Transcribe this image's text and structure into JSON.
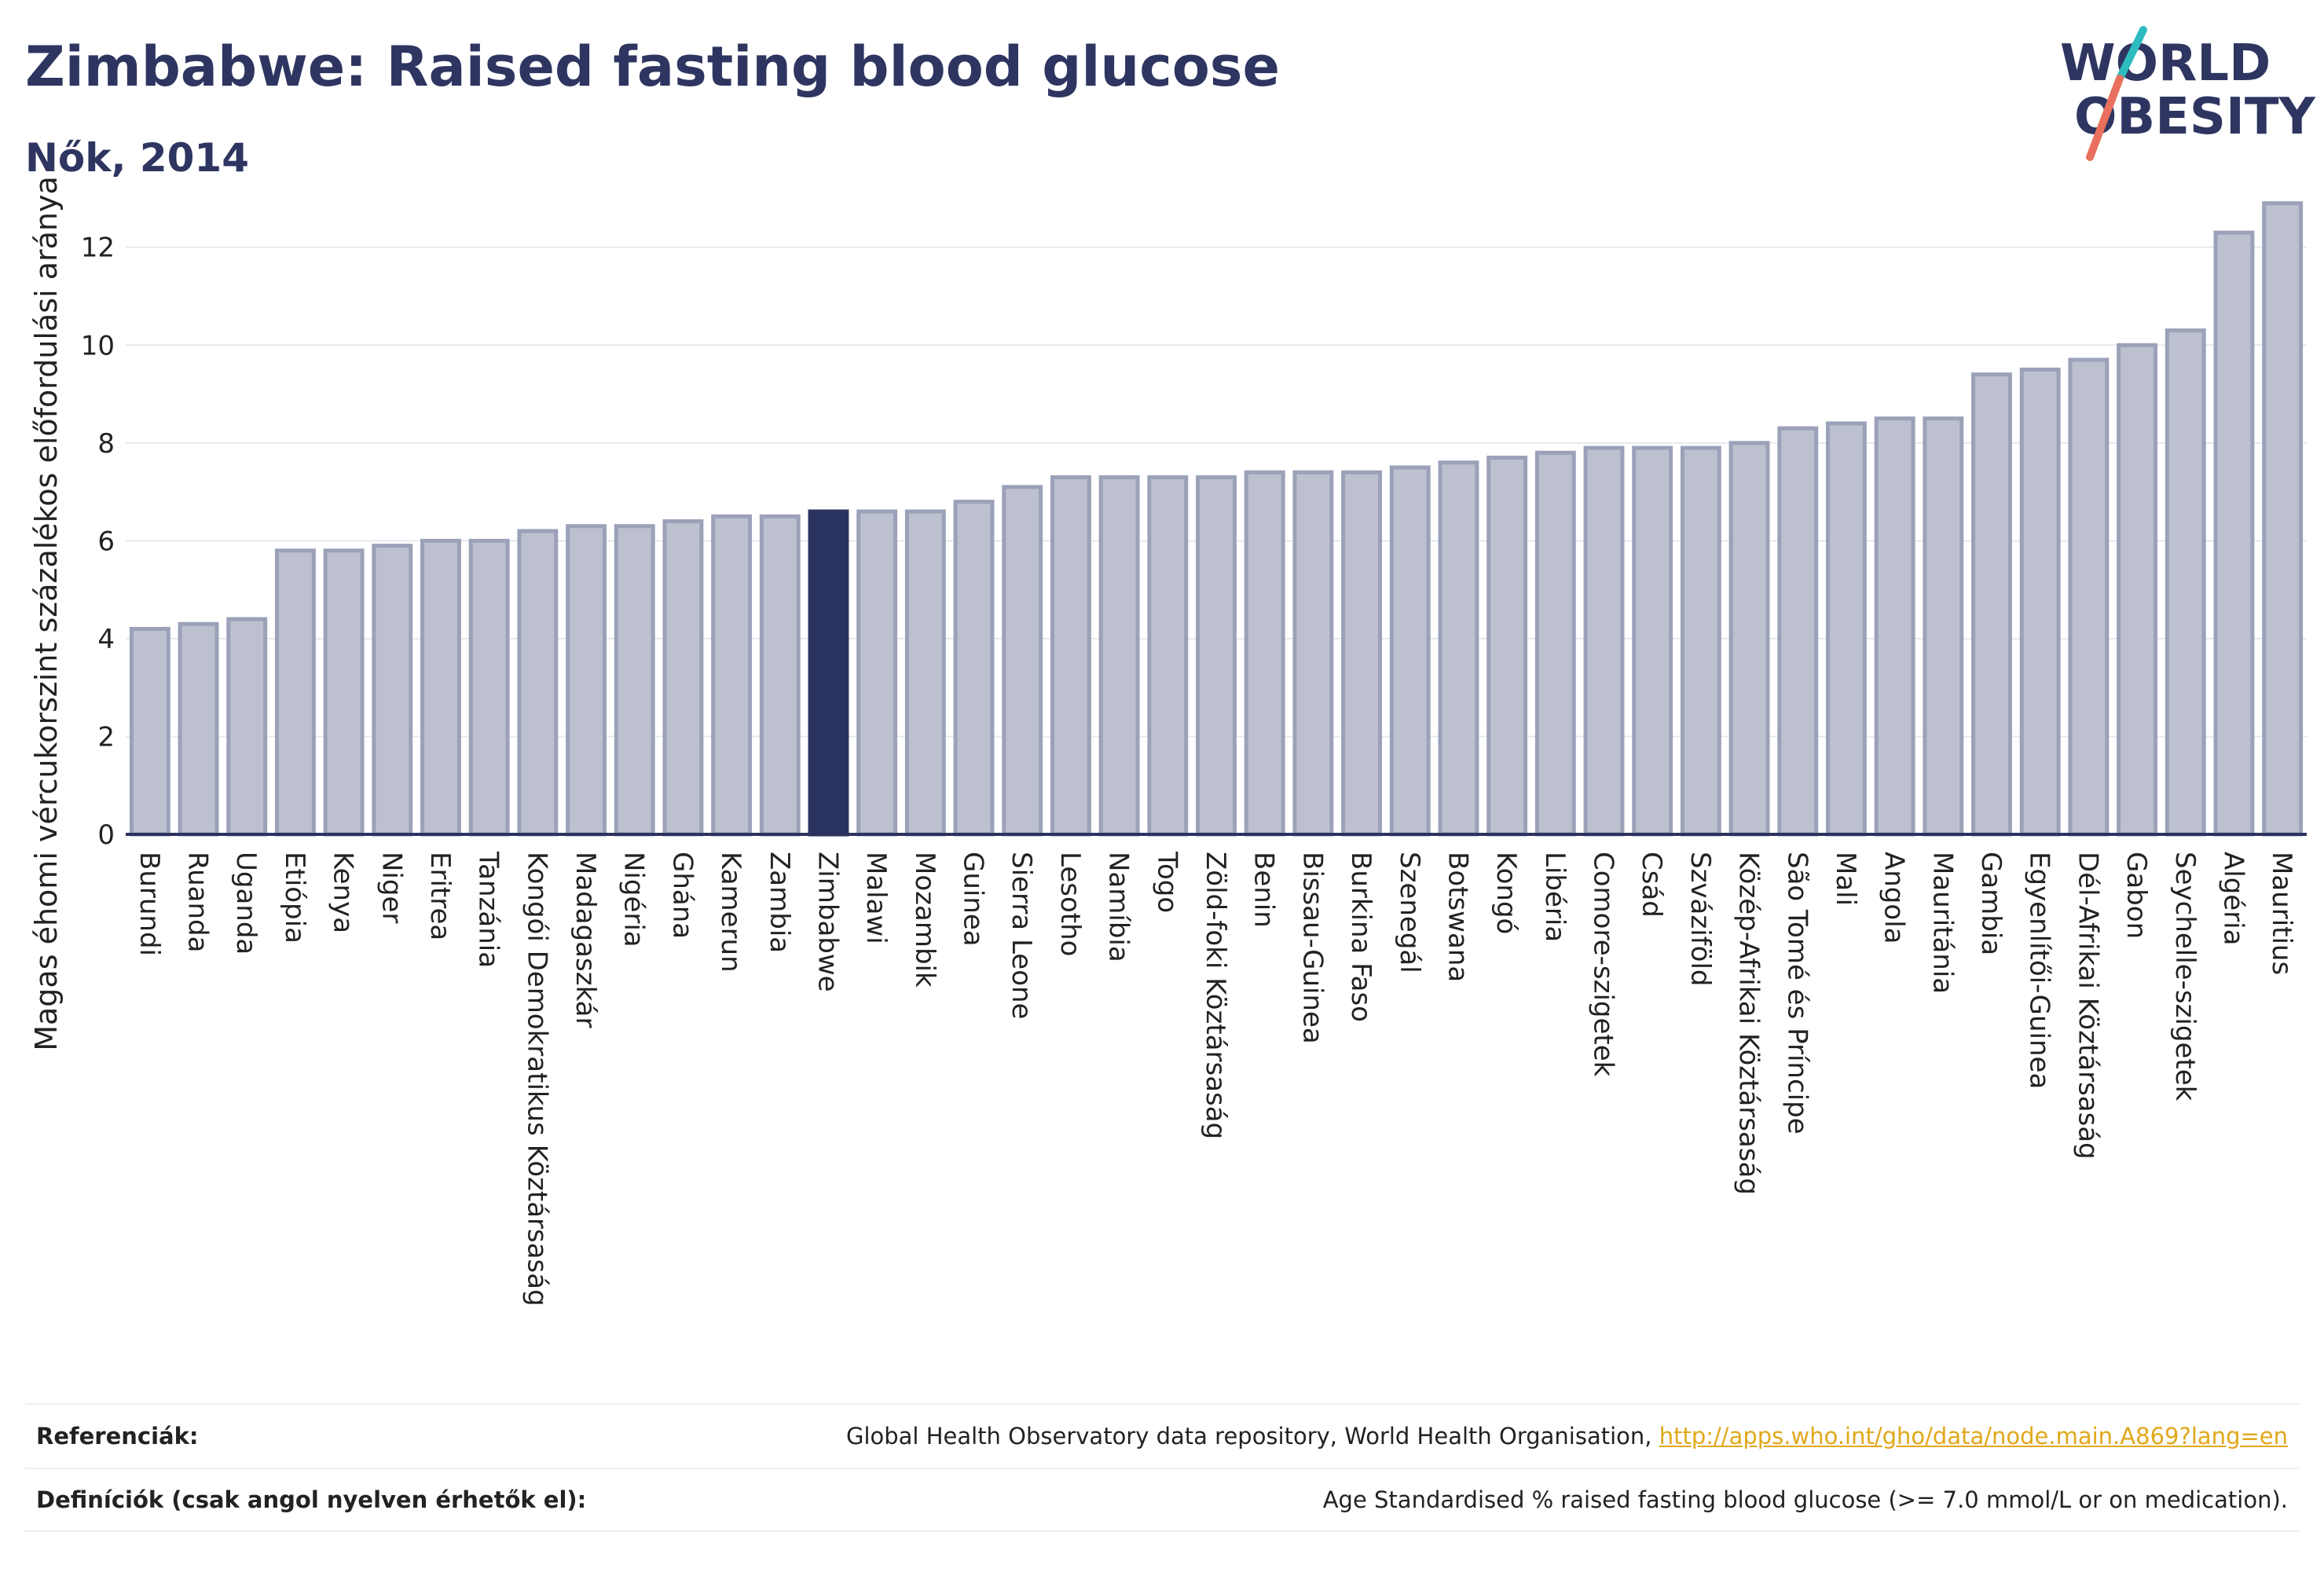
{
  "header": {
    "title": "Zimbabwe: Raised fasting blood glucose",
    "subtitle": "Nők, 2014"
  },
  "logo": {
    "line1": "WORLD",
    "line2": "OBESITY",
    "colors": {
      "text": "#2e3561",
      "slash_teal": "#2cbcbf",
      "slash_coral": "#e8705d"
    }
  },
  "chart_data": {
    "type": "bar",
    "ylabel": "Magas éhomi vércukorszint százalékos előfordulási aránya",
    "ylim": [
      0,
      13.2
    ],
    "yticks": [
      0,
      2,
      4,
      6,
      8,
      10,
      12
    ],
    "grid": true,
    "highlight": "Zimbabwe",
    "colors": {
      "bar": "#bcc0cf",
      "bar_edge": "#9ba1b8",
      "highlight": "#2a3360",
      "axis": "#2a3360",
      "grid": "#e6e8ee"
    },
    "categories": [
      "Burundi",
      "Ruanda",
      "Uganda",
      "Etiópia",
      "Kenya",
      "Niger",
      "Eritrea",
      "Tanzánia",
      "Kongói Demokratikus Köztársaság",
      "Madagaszkár",
      "Nigéria",
      "Ghána",
      "Kamerun",
      "Zambia",
      "Zimbabwe",
      "Malawi",
      "Mozambik",
      "Guinea",
      "Sierra Leone",
      "Lesotho",
      "Namíbia",
      "Togo",
      "Zöld-foki Köztársaság",
      "Benin",
      "Bissau-Guinea",
      "Burkina Faso",
      "Szenegál",
      "Botswana",
      "Kongó",
      "Libéria",
      "Comore-szigetek",
      "Csád",
      "Szváziföld",
      "Közép-Afrikai Köztársaság",
      "São Tomé és Príncipe",
      "Mali",
      "Angola",
      "Mauritánia",
      "Gambia",
      "Egyenlítői-Guinea",
      "Dél-Afrikai Köztársaság",
      "Gabon",
      "Seychelle-szigetek",
      "Algéria",
      "Mauritius"
    ],
    "values": [
      4.2,
      4.3,
      4.4,
      5.8,
      5.8,
      5.9,
      6.0,
      6.0,
      6.2,
      6.3,
      6.3,
      6.4,
      6.5,
      6.5,
      6.6,
      6.6,
      6.6,
      6.8,
      7.1,
      7.3,
      7.3,
      7.3,
      7.3,
      7.4,
      7.4,
      7.4,
      7.5,
      7.6,
      7.7,
      7.8,
      7.9,
      7.9,
      7.9,
      8.0,
      8.3,
      8.4,
      8.5,
      8.5,
      9.4,
      9.5,
      9.7,
      10.0,
      10.3,
      12.3,
      12.9
    ]
  },
  "footer": {
    "references_label": "Referenciák:",
    "references_text": "Global Health Observatory data repository, World Health Organisation,",
    "references_link": "http://apps.who.int/gho/data/node.main.A869?lang=en",
    "definitions_label": "Definíciók (csak angol nyelven érhetők el):",
    "definitions_text": "Age Standardised % raised fasting blood glucose (>= 7.0 mmol/L or on medication)."
  }
}
